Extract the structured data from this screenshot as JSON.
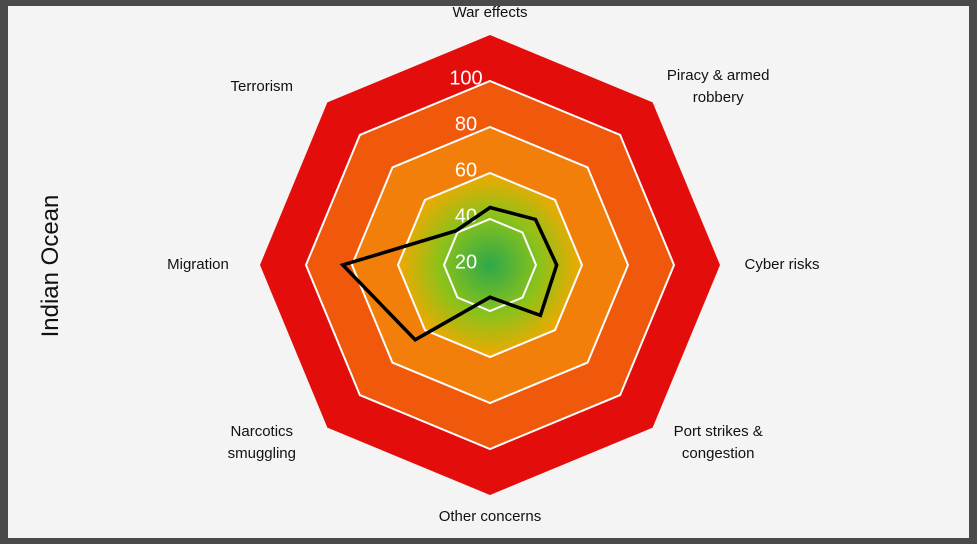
{
  "chart_data": {
    "type": "radar",
    "title": "Indian Ocean",
    "categories": [
      "War effects",
      "Piracy & armed robbery",
      "Cyber risks",
      "Port strikes & congestion",
      "Other concerns",
      "Narcotics smuggling",
      "Migration",
      "Terrorism"
    ],
    "series": [
      {
        "color": "#000000",
        "values": [
          45,
          48,
          49,
          51,
          34,
          66,
          84,
          41
        ]
      }
    ],
    "ylim": [
      20,
      120
    ],
    "yticks": [
      20,
      40,
      60,
      80,
      100
    ]
  }
}
